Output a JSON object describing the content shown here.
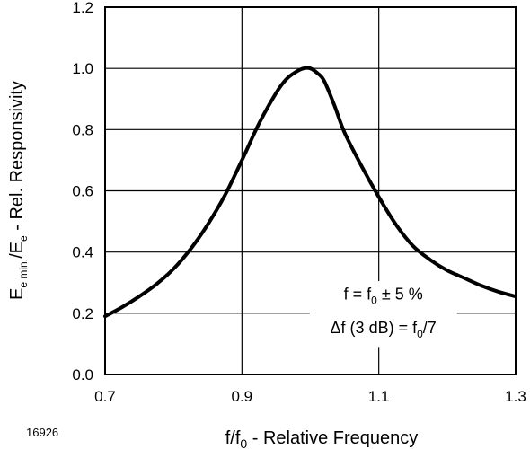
{
  "figure_number": "16926",
  "chart_data": {
    "type": "line",
    "title": "",
    "xlabel": {
      "main": "f/f",
      "sub": "0",
      "rest": " - Relative Frequency"
    },
    "ylabel": {
      "E1": "E",
      "E1_sub": "e min.",
      "sep": "/E",
      "E2_sub": "e",
      "rest": " - Rel. Responsivity"
    },
    "xlim": [
      0.7,
      1.3
    ],
    "ylim": [
      0.0,
      1.2
    ],
    "x_ticks": [
      0.7,
      0.9,
      1.1,
      1.3
    ],
    "x_tick_labels": [
      "0.7",
      "0.9",
      "1.1",
      "1.3"
    ],
    "y_ticks": [
      0.0,
      0.2,
      0.4,
      0.6,
      0.8,
      1.0,
      1.2
    ],
    "y_tick_labels": [
      "0.0",
      "0.2",
      "0.4",
      "0.6",
      "0.8",
      "1.0",
      "1.2"
    ],
    "grid": true,
    "series": [
      {
        "x": [
          0.7,
          0.725,
          0.75,
          0.775,
          0.8,
          0.825,
          0.85,
          0.875,
          0.9,
          0.925,
          0.95,
          0.965,
          0.98,
          0.99,
          1.0,
          1.01,
          1.02,
          1.035,
          1.05,
          1.075,
          1.1,
          1.125,
          1.15,
          1.175,
          1.2,
          1.225,
          1.25,
          1.275,
          1.3
        ],
        "y": [
          0.19,
          0.22,
          0.255,
          0.295,
          0.345,
          0.41,
          0.49,
          0.585,
          0.7,
          0.82,
          0.92,
          0.965,
          0.99,
          1.0,
          1.0,
          0.985,
          0.96,
          0.88,
          0.79,
          0.68,
          0.58,
          0.49,
          0.42,
          0.375,
          0.34,
          0.315,
          0.29,
          0.27,
          0.255
        ],
        "color": "#000000"
      }
    ],
    "annotation": {
      "line1_a": "f = f",
      "line1_sub": "0",
      "line1_b": " ± 5 %",
      "line2_a": "Δf (3 dB) = f",
      "line2_sub": "0",
      "line2_b": "/7"
    }
  }
}
